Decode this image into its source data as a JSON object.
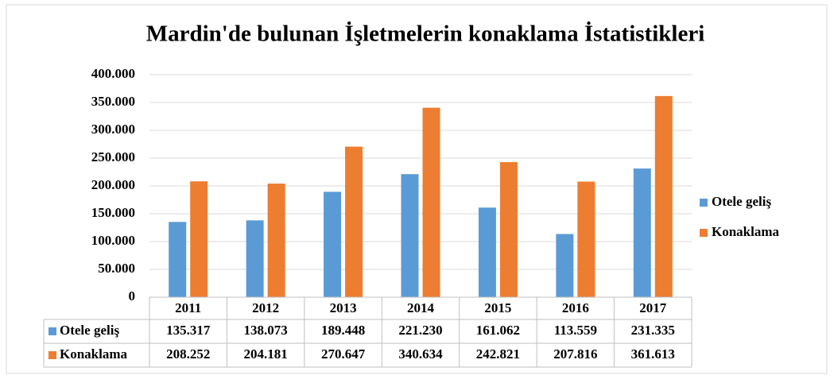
{
  "chart_data": {
    "type": "bar",
    "title": "Mardin'de bulunan İşletmelerin konaklama İstatistikleri",
    "categories": [
      "2011",
      "2012",
      "2013",
      "2014",
      "2015",
      "2016",
      "2017"
    ],
    "series": [
      {
        "name": "Otele geliş",
        "color": "#5b9bd5",
        "values": [
          135317,
          138073,
          189448,
          221230,
          161062,
          113559,
          231335
        ],
        "value_labels": [
          "135.317",
          "138.073",
          "189.448",
          "221.230",
          "161.062",
          "113.559",
          "231.335"
        ]
      },
      {
        "name": "Konaklama",
        "color": "#ed7d31",
        "values": [
          208252,
          204181,
          270647,
          340634,
          242821,
          207816,
          361613
        ],
        "value_labels": [
          "208.252",
          "204.181",
          "270.647",
          "340.634",
          "242.821",
          "207.816",
          "361.613"
        ]
      }
    ],
    "ylim": [
      0,
      400000
    ],
    "yticks": [
      0,
      {
        "value": 50000,
        "label": "50.000"
      },
      {
        "value": 100000,
        "label": "100.000"
      },
      {
        "value": 150000,
        "label": "150.000"
      },
      {
        "value": 200000,
        "label": "200.000"
      },
      {
        "value": 250000,
        "label": "250.000"
      },
      {
        "value": 300000,
        "label": "300.000"
      },
      {
        "value": 350000,
        "label": "350.000"
      },
      {
        "value": 400000,
        "label": "400.000"
      }
    ],
    "grid": true,
    "legend": "right"
  }
}
